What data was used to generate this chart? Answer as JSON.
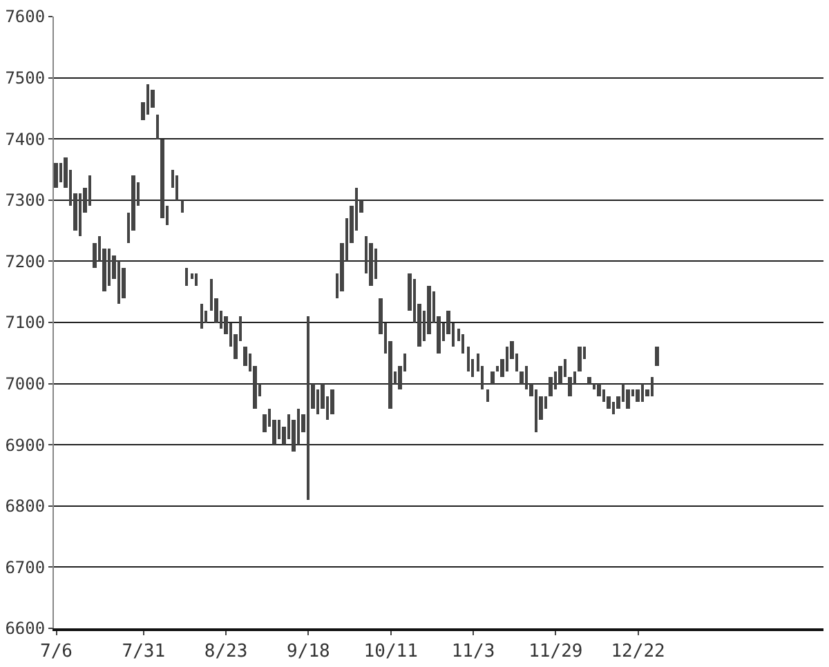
{
  "chart_data": {
    "type": "bar",
    "categories": [
      "7/6",
      null,
      null,
      null,
      null,
      null,
      null,
      null,
      null,
      null,
      null,
      null,
      null,
      null,
      null,
      null,
      null,
      null,
      "7/31",
      null,
      null,
      null,
      null,
      null,
      null,
      null,
      null,
      null,
      null,
      null,
      null,
      null,
      null,
      null,
      null,
      "8/23",
      null,
      null,
      null,
      null,
      null,
      null,
      null,
      null,
      null,
      null,
      null,
      null,
      null,
      null,
      null,
      null,
      "9/18",
      null,
      null,
      null,
      null,
      null,
      null,
      null,
      null,
      null,
      null,
      null,
      null,
      null,
      null,
      null,
      null,
      "10/11",
      null,
      null,
      null,
      null,
      null,
      null,
      null,
      null,
      null,
      null,
      null,
      null,
      null,
      null,
      null,
      null,
      "11/3",
      null,
      null,
      null,
      null,
      null,
      null,
      null,
      null,
      null,
      null,
      null,
      null,
      null,
      null,
      null,
      null,
      "11/29",
      null,
      null,
      null,
      null,
      null,
      null,
      null,
      null,
      null,
      null,
      null,
      null,
      null,
      null,
      null,
      null,
      "12/22",
      null,
      null,
      null,
      null
    ],
    "base": [
      7320,
      7330,
      7320,
      7290,
      7250,
      7240,
      7280,
      7290,
      7190,
      7200,
      7150,
      7160,
      7170,
      7130,
      7140,
      7230,
      7250,
      7290,
      7430,
      7440,
      7450,
      7400,
      7270,
      7260,
      7320,
      7300,
      7280,
      7160,
      7170,
      7160,
      7090,
      7100,
      7120,
      7100,
      7090,
      7080,
      7060,
      7040,
      7070,
      7030,
      7020,
      6960,
      6980,
      6920,
      6930,
      6900,
      6910,
      6900,
      6910,
      6890,
      6900,
      6920,
      6810,
      6960,
      6950,
      6960,
      6940,
      6950,
      7140,
      7150,
      7200,
      7230,
      7250,
      7280,
      7180,
      7160,
      7170,
      7080,
      7050,
      6960,
      7000,
      6990,
      7020,
      7120,
      7100,
      7060,
      7070,
      7080,
      7100,
      7050,
      7070,
      7080,
      7060,
      7070,
      7050,
      7020,
      7010,
      7020,
      6990,
      6970,
      7000,
      7020,
      7010,
      7020,
      7040,
      7020,
      7000,
      6990,
      6980,
      6920,
      6940,
      6960,
      6980,
      6990,
      7000,
      7010,
      6980,
      7000,
      7020,
      7040,
      7000,
      6990,
      6980,
      6970,
      6960,
      6950,
      6960,
      6970,
      6960,
      6980,
      6970,
      6970,
      6980,
      6980,
      7030
    ],
    "values": [
      40,
      30,
      50,
      60,
      60,
      70,
      40,
      50,
      40,
      40,
      70,
      60,
      40,
      70,
      50,
      50,
      90,
      40,
      30,
      50,
      30,
      40,
      130,
      30,
      30,
      40,
      20,
      30,
      10,
      20,
      40,
      20,
      50,
      40,
      30,
      30,
      40,
      40,
      40,
      30,
      30,
      70,
      20,
      30,
      30,
      40,
      30,
      30,
      40,
      50,
      60,
      30,
      300,
      40,
      40,
      40,
      40,
      40,
      40,
      80,
      70,
      60,
      70,
      20,
      60,
      70,
      50,
      60,
      50,
      110,
      20,
      40,
      30,
      60,
      70,
      70,
      50,
      80,
      50,
      60,
      30,
      40,
      40,
      20,
      30,
      40,
      30,
      30,
      40,
      20,
      20,
      10,
      30,
      40,
      30,
      30,
      20,
      40,
      20,
      70,
      40,
      20,
      30,
      30,
      30,
      30,
      30,
      20,
      40,
      20,
      10,
      10,
      20,
      20,
      20,
      20,
      20,
      30,
      30,
      10,
      20,
      30,
      10,
      30,
      30
    ],
    "color": "#444444",
    "ylim": [
      6600,
      7600
    ],
    "yticks": [
      6600,
      6700,
      6800,
      6900,
      7000,
      7100,
      7200,
      7300,
      7400,
      7500,
      7600
    ],
    "grid": "y"
  }
}
